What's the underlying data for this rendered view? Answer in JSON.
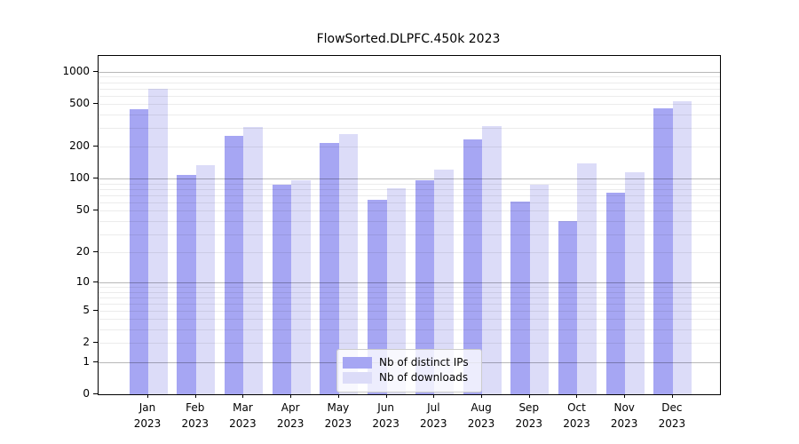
{
  "title": "FlowSorted.DLPFC.450k 2023",
  "legend": {
    "items": [
      {
        "label": "Nb of distinct IPs",
        "color": "#a6a6f3"
      },
      {
        "label": "Nb of downloads",
        "color": "#dcdcf8"
      }
    ]
  },
  "chart_data": {
    "type": "bar",
    "title": "FlowSorted.DLPFC.450k 2023",
    "categories": [
      "Jan 2023",
      "Feb 2023",
      "Mar 2023",
      "Apr 2023",
      "May 2023",
      "Jun 2023",
      "Jul 2023",
      "Aug 2023",
      "Sep 2023",
      "Oct 2023",
      "Nov 2023",
      "Dec 2023"
    ],
    "x_tick_line1": [
      "Jan",
      "Feb",
      "Mar",
      "Apr",
      "May",
      "Jun",
      "Jul",
      "Aug",
      "Sep",
      "Oct",
      "Nov",
      "Dec"
    ],
    "x_tick_line2": "2023",
    "series": [
      {
        "name": "Nb of distinct IPs",
        "color": "#a6a6f3",
        "values": [
          450,
          108,
          255,
          89,
          217,
          64,
          97,
          236,
          61,
          40,
          74,
          457
        ]
      },
      {
        "name": "Nb of downloads",
        "color": "#dcdcf8",
        "values": [
          695,
          135,
          305,
          98,
          263,
          81,
          122,
          312,
          88,
          140,
          115,
          536
        ]
      }
    ],
    "y_ticks": [
      0,
      1,
      2,
      5,
      10,
      20,
      50,
      100,
      200,
      500,
      1000
    ],
    "y_major_gridlines": [
      1,
      10,
      100,
      1000
    ],
    "y_scale": "log10(1+v)",
    "ylim": [
      0,
      1400
    ],
    "grid": true,
    "legend_position": "lower center",
    "colors": {
      "bar_dark": "#a6a6f3",
      "bar_light": "#dcdcf8",
      "grid_minor": "#ececec",
      "grid_major": "#b8b8b8",
      "axis": "#000000"
    }
  }
}
